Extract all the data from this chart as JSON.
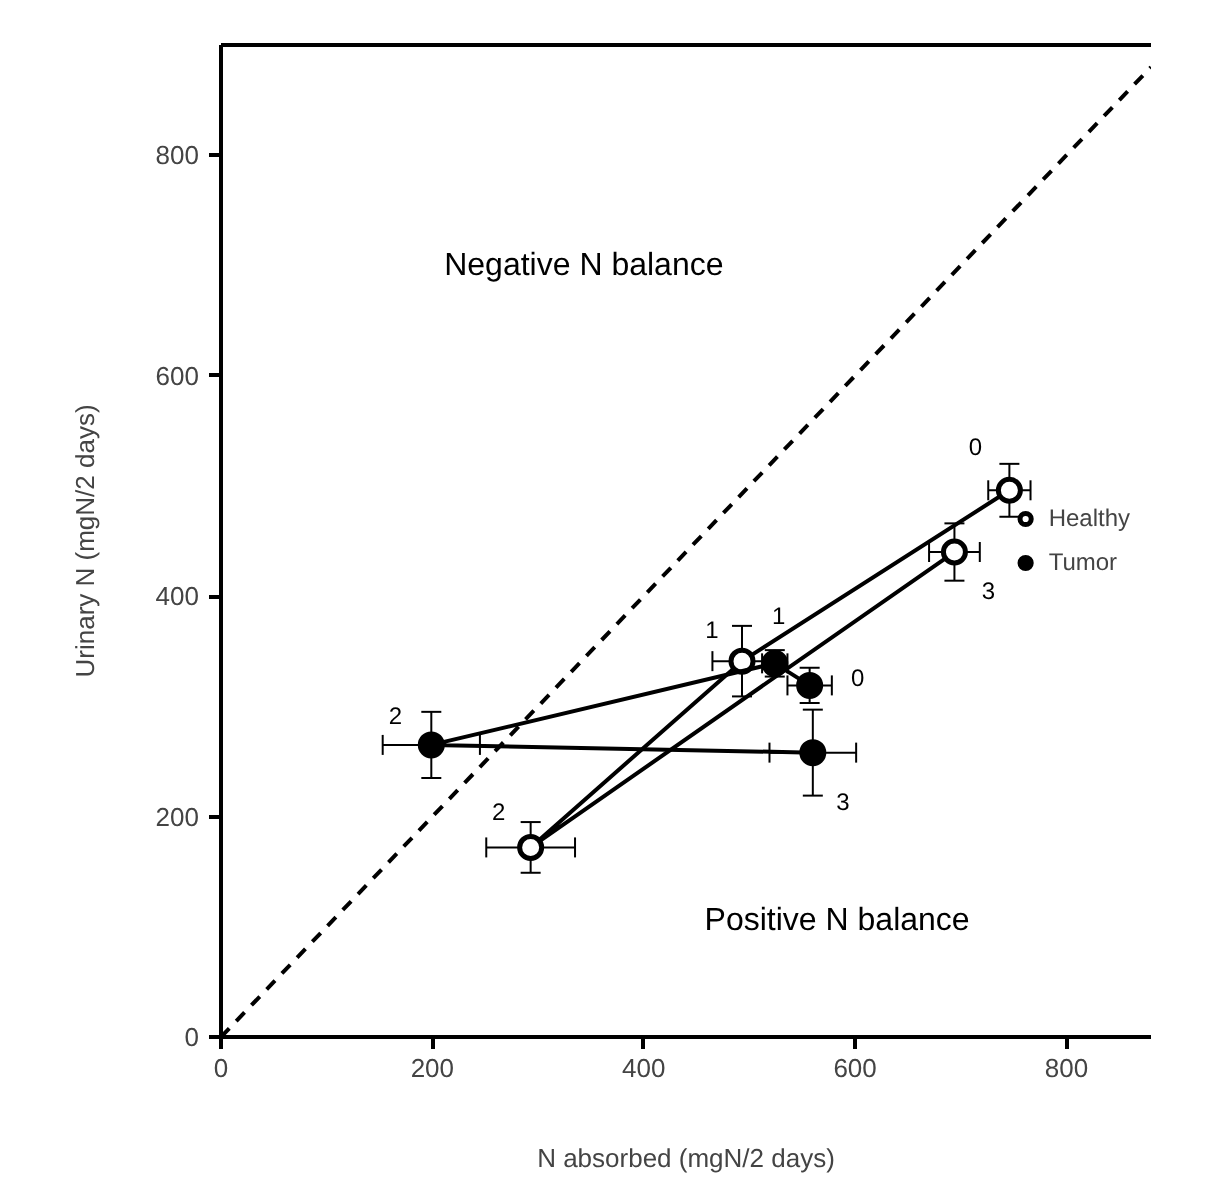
{
  "chart_data": {
    "type": "line",
    "xlabel": "N absorbed (mgN/2 days)",
    "ylabel": "Urinary N (mgN/2 days)",
    "xlim": [
      0,
      880
    ],
    "ylim": [
      0,
      900
    ],
    "xticks": [
      0,
      200,
      400,
      600,
      800
    ],
    "yticks": [
      0,
      200,
      400,
      600,
      800
    ],
    "grid": false,
    "legend": "right",
    "marker": "circle",
    "series": [
      {
        "name": "Healthy",
        "color": "#000000",
        "colors": [
          "#ffffff",
          "#ffffff",
          "#ffffff",
          "#ffffff"
        ],
        "x": [
          746,
          493,
          293,
          694
        ],
        "values": [
          496,
          341,
          172,
          440
        ],
        "xerrors": [
          20,
          28,
          42,
          24
        ],
        "errors": [
          24,
          32,
          23,
          26
        ],
        "line_style": "solid"
      },
      {
        "name": "Tumor",
        "color": "#000000",
        "colors": [
          "#000000",
          "#000000",
          "#000000",
          "#000000"
        ],
        "x": [
          557,
          524,
          199,
          560
        ],
        "values": [
          319,
          339,
          265,
          258
        ],
        "xerrors": [
          21,
          12,
          46,
          41
        ],
        "errors": [
          16,
          12,
          30,
          39
        ],
        "line_style": "solid"
      },
      {
        "color": "#000000",
        "x": [
          0,
          880
        ],
        "values": [
          0,
          880
        ],
        "line_style": "dashed",
        "marker": "none"
      }
    ],
    "annotations": [
      "Negative N balance",
      "Positive N balance",
      {
        "text": "0",
        "x": 746,
        "y": 496
      },
      {
        "text": "1",
        "x": 493,
        "y": 341
      },
      {
        "text": "2",
        "x": 293,
        "y": 172
      },
      {
        "text": "3",
        "x": 694,
        "y": 440
      },
      {
        "text": "0",
        "x": 557,
        "y": 319
      },
      {
        "text": "1",
        "x": 524,
        "y": 339
      },
      {
        "text": "2",
        "x": 199,
        "y": 265
      },
      {
        "text": "3",
        "x": 560,
        "y": 258
      }
    ]
  }
}
